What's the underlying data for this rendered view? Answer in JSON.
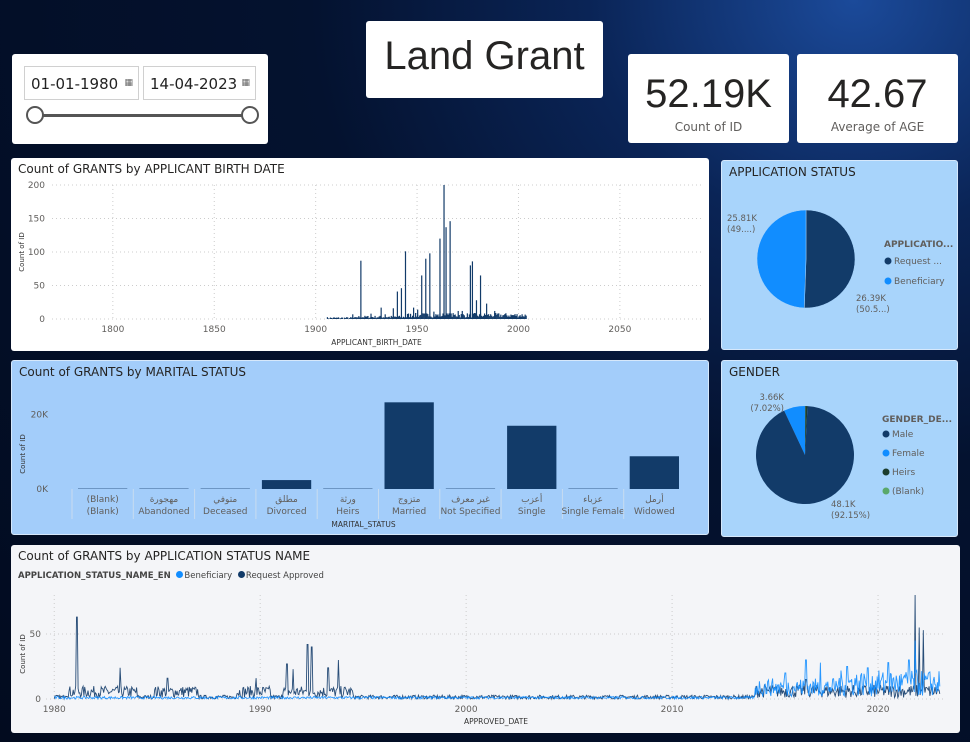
{
  "slicer": {
    "start_date": "01-01-1980",
    "end_date": "14-04-2023",
    "calendar_icon": "calendar-icon",
    "range_fraction": [
      0,
      1
    ]
  },
  "header": {
    "title": "Land Grant"
  },
  "kpis": [
    {
      "value": "52.19K",
      "label": "Count of ID"
    },
    {
      "value": "42.67",
      "label": "Average of AGE"
    }
  ],
  "colors": {
    "dark": "#123b69",
    "light": "#118dff",
    "heirs": "#1c3d2e",
    "blank": "#5aa86a"
  },
  "chart_data": [
    {
      "type": "bar",
      "title": "Count of GRANTS by APPLICANT BIRTH DATE",
      "xlabel": "APPLICANT_BIRTH_DATE",
      "ylabel": "Count of ID",
      "xticks": [
        1800,
        1850,
        1900,
        1950,
        2000,
        2050
      ],
      "yticks": [
        0,
        50,
        100,
        150,
        200
      ],
      "xlim": [
        1770,
        2090
      ],
      "ylim": [
        0,
        200
      ],
      "grid": true,
      "x": [
        1918,
        1922,
        1927,
        1932,
        1934,
        1938,
        1940,
        1942,
        1944,
        1948,
        1950,
        1952,
        1954,
        1956,
        1958,
        1961,
        1963,
        1964,
        1966,
        1970,
        1972,
        1976,
        1977,
        1979,
        1981,
        1984,
        1988
      ],
      "values": [
        7,
        87,
        8,
        17,
        7,
        16,
        41,
        46,
        101,
        17,
        14,
        65,
        90,
        98,
        11,
        120,
        200,
        137,
        146,
        12,
        12,
        80,
        86,
        28,
        65,
        23,
        12
      ]
    },
    {
      "type": "bar",
      "title": "Count of GRANTS by MARITAL STATUS",
      "xlabel": "MARITAL_STATUS",
      "ylabel": "Count of ID",
      "yticks": [
        "0K",
        "20K"
      ],
      "ylim": [
        0,
        25000
      ],
      "categories": [
        [
          "(Blank)",
          "(Blank)"
        ],
        [
          "مهجورة",
          "Abandoned"
        ],
        [
          "متوفي",
          "Deceased"
        ],
        [
          "مطلق",
          "Divorced"
        ],
        [
          "ورثة",
          "Heirs"
        ],
        [
          "متزوج",
          "Married"
        ],
        [
          "غير معرف",
          "Not Specified"
        ],
        [
          "أعزب",
          "Single"
        ],
        [
          "عزباء",
          "Single Female"
        ],
        [
          "أرمل",
          "Widowed"
        ]
      ],
      "values": [
        100,
        100,
        100,
        2400,
        100,
        23300,
        100,
        17000,
        100,
        8800
      ]
    },
    {
      "type": "pie",
      "title": "APPLICATION STATUS",
      "legend_title": "APPLICATIO...",
      "legend_position": "right",
      "slices": [
        {
          "name": "Request ...",
          "value": 26390,
          "label": "26.39K",
          "pct": "(50.5...)",
          "color": "#123b69"
        },
        {
          "name": "Beneficiary",
          "value": 25810,
          "label": "25.81K",
          "pct": "(49....)",
          "color": "#118dff"
        }
      ]
    },
    {
      "type": "pie",
      "title": "GENDER",
      "legend_title": "GENDER_DE...",
      "legend_position": "right",
      "slices": [
        {
          "name": "Male",
          "value": 48100,
          "label": "48.1K",
          "pct": "(92.15%)",
          "color": "#123b69"
        },
        {
          "name": "Female",
          "value": 3660,
          "label": "3.66K",
          "pct": "(7.02%)",
          "color": "#118dff"
        },
        {
          "name": "Heirs",
          "value": 380,
          "label": "",
          "pct": "",
          "color": "#1c3d2e"
        },
        {
          "name": "(Blank)",
          "value": 50,
          "label": "",
          "pct": "",
          "color": "#5aa86a"
        }
      ]
    },
    {
      "type": "line",
      "title": "Count of GRANTS by APPLICATION STATUS NAME",
      "legend_title": "APPLICATION_STATUS_NAME_EN",
      "legend_position": "top-left",
      "xlabel": "APPROVED_DATE",
      "ylabel": "Count of ID",
      "xticks": [
        1980,
        1990,
        2000,
        2010,
        2020
      ],
      "yticks": [
        0,
        50
      ],
      "xlim": [
        1979.6,
        2023.3
      ],
      "ylim": [
        0,
        80
      ],
      "grid": true,
      "series": [
        {
          "name": "Beneficiary",
          "color": "#118dff",
          "peaks": [
            [
              2015.5,
              20
            ],
            [
              2016.5,
              30
            ],
            [
              2017.2,
              28
            ],
            [
              2018.5,
              25
            ],
            [
              2019.5,
              24
            ],
            [
              2020.5,
              28
            ],
            [
              2021.5,
              30
            ],
            [
              2021.8,
              45
            ]
          ]
        },
        {
          "name": "Request Approved",
          "color": "#123b69",
          "peaks": [
            [
              1981.1,
              63
            ],
            [
              1983.2,
              24
            ],
            [
              1985.5,
              16
            ],
            [
              1989.8,
              16
            ],
            [
              1991.3,
              27
            ],
            [
              1991.6,
              23
            ],
            [
              1992.3,
              42
            ],
            [
              1992.5,
              40
            ],
            [
              1993.3,
              24
            ],
            [
              1993.8,
              30
            ],
            [
              2016.5,
              15
            ],
            [
              2021.8,
              80
            ],
            [
              2022.0,
              55
            ],
            [
              2022.2,
              53
            ]
          ]
        }
      ]
    }
  ]
}
